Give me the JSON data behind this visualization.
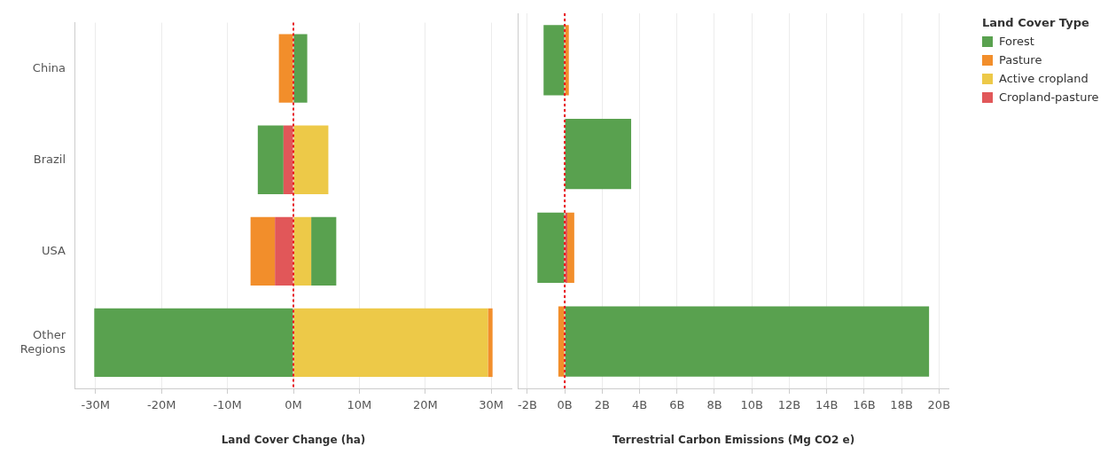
{
  "chart_data": [
    {
      "type": "bar",
      "orientation": "horizontal",
      "stacked": true,
      "xlabel": "Land Cover Change (ha)",
      "categories": [
        "China",
        "Brazil",
        "USA",
        "Other Regions"
      ],
      "series": [
        {
          "name": "Cropland-pasture",
          "color": "#e15759",
          "values": [
            null,
            -1.5,
            -2.8,
            null
          ]
        },
        {
          "name": "Active cropland",
          "color": "#edc948",
          "values": [
            null,
            5.3,
            2.7,
            29.5
          ]
        },
        {
          "name": "Pasture",
          "color": "#f28e2b",
          "values": [
            -2.2,
            null,
            -3.7,
            0.7
          ]
        },
        {
          "name": "Forest",
          "color": "#59a14f",
          "values": [
            2.1,
            -3.9,
            3.8,
            -30.2
          ]
        }
      ],
      "xlim": [
        -33.2,
        33.2
      ],
      "xticks": [
        {
          "value": -30,
          "label": "-30M"
        },
        {
          "value": -20,
          "label": "-20M"
        },
        {
          "value": -10,
          "label": "-10M"
        },
        {
          "value": 0,
          "label": "0M"
        },
        {
          "value": 10,
          "label": "10M"
        },
        {
          "value": 20,
          "label": "20M"
        },
        {
          "value": 30,
          "label": "30M"
        }
      ],
      "grid": "x",
      "legend": "top right",
      "legend_title": "Land Cover Type",
      "ref_lines": [
        {
          "axis": "x",
          "value": 0,
          "color": "#e8141c",
          "line_style": "dotted"
        }
      ]
    },
    {
      "type": "bar",
      "orientation": "horizontal",
      "stacked": true,
      "xlabel": "Terrestrial Carbon Emissions (Mg CO2 e)",
      "categories": [
        null,
        null,
        null,
        null
      ],
      "series": [
        {
          "color": "#e15759",
          "values": [
            null,
            null,
            0.14,
            null
          ]
        },
        {
          "color": "#edc948",
          "values": [
            null,
            null,
            null,
            null
          ]
        },
        {
          "color": "#f28e2b",
          "values": [
            0.22,
            null,
            0.37,
            -0.34
          ]
        },
        {
          "color": "#59a14f",
          "values": [
            -1.13,
            3.55,
            -1.46,
            19.47
          ]
        }
      ],
      "xlim": [
        -2.5,
        20.55
      ],
      "xticks": [
        {
          "value": -2,
          "label": "-2B"
        },
        {
          "value": 0,
          "label": "0B"
        },
        {
          "value": 2,
          "label": "2B"
        },
        {
          "value": 4,
          "label": "4B"
        },
        {
          "value": 6,
          "label": "6B"
        },
        {
          "value": 8,
          "label": "8B"
        },
        {
          "value": 10,
          "label": "10B"
        },
        {
          "value": 12,
          "label": "12B"
        },
        {
          "value": 14,
          "label": "14B"
        },
        {
          "value": 16,
          "label": "16B"
        },
        {
          "value": 18,
          "label": "18B"
        },
        {
          "value": 20,
          "label": "20B"
        }
      ],
      "grid": "x",
      "tick_labels": "x",
      "ref_lines": [
        {
          "axis": "x",
          "value": 0,
          "color": "#e8141c",
          "line_style": "dotted"
        }
      ]
    }
  ]
}
